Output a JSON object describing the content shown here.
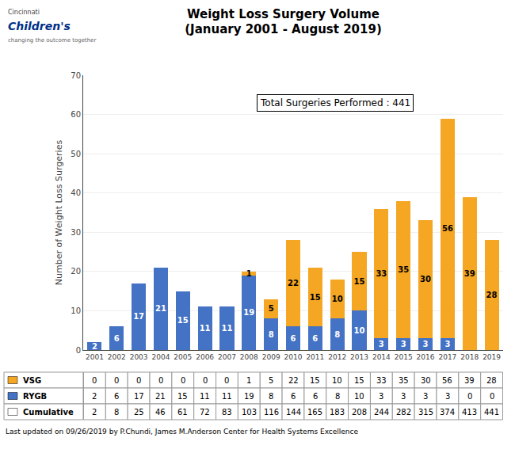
{
  "chart_data": {
    "type": "bar",
    "stacked": true,
    "title": "Weight Loss Surgery Volume",
    "subtitle": "(January 2001 - August 2019)",
    "ylabel": "Number of Weight Loss Surgeries",
    "categories": [
      "2001",
      "2002",
      "2003",
      "2004",
      "2005",
      "2006",
      "2007",
      "2008",
      "2009",
      "2010",
      "2011",
      "2012",
      "2013",
      "2014",
      "2015",
      "2016",
      "2017",
      "2018",
      "2019"
    ],
    "series": [
      {
        "name": "RYGB",
        "color": "#4472C4",
        "values": [
          2,
          6,
          17,
          21,
          15,
          11,
          11,
          19,
          8,
          6,
          6,
          8,
          10,
          3,
          3,
          3,
          3,
          0,
          0
        ]
      },
      {
        "name": "VSG",
        "color": "#F5A623",
        "values": [
          0,
          0,
          0,
          0,
          0,
          0,
          0,
          1,
          5,
          22,
          15,
          10,
          15,
          33,
          35,
          30,
          56,
          39,
          28
        ]
      }
    ],
    "ylim": [
      0,
      70
    ],
    "yticks": [
      0,
      10,
      20,
      30,
      40,
      50,
      60,
      70
    ],
    "grid": true,
    "data_labels": true,
    "annotations": [
      "Total Surgeries Performed : 441"
    ],
    "table": {
      "rows": [
        "VSG",
        "RYGB",
        "Cumulative"
      ],
      "cumulative": [
        2,
        8,
        25,
        46,
        61,
        72,
        83,
        103,
        116,
        144,
        165,
        183,
        208,
        244,
        282,
        315,
        374,
        413,
        441
      ]
    },
    "footnote": "Last updated on 09/26/2019 by P.Chundi, James M.Anderson Center for Health Systems Excellence",
    "logo": [
      "Cincinnati",
      "Children's",
      "changing the outcome together"
    ]
  }
}
